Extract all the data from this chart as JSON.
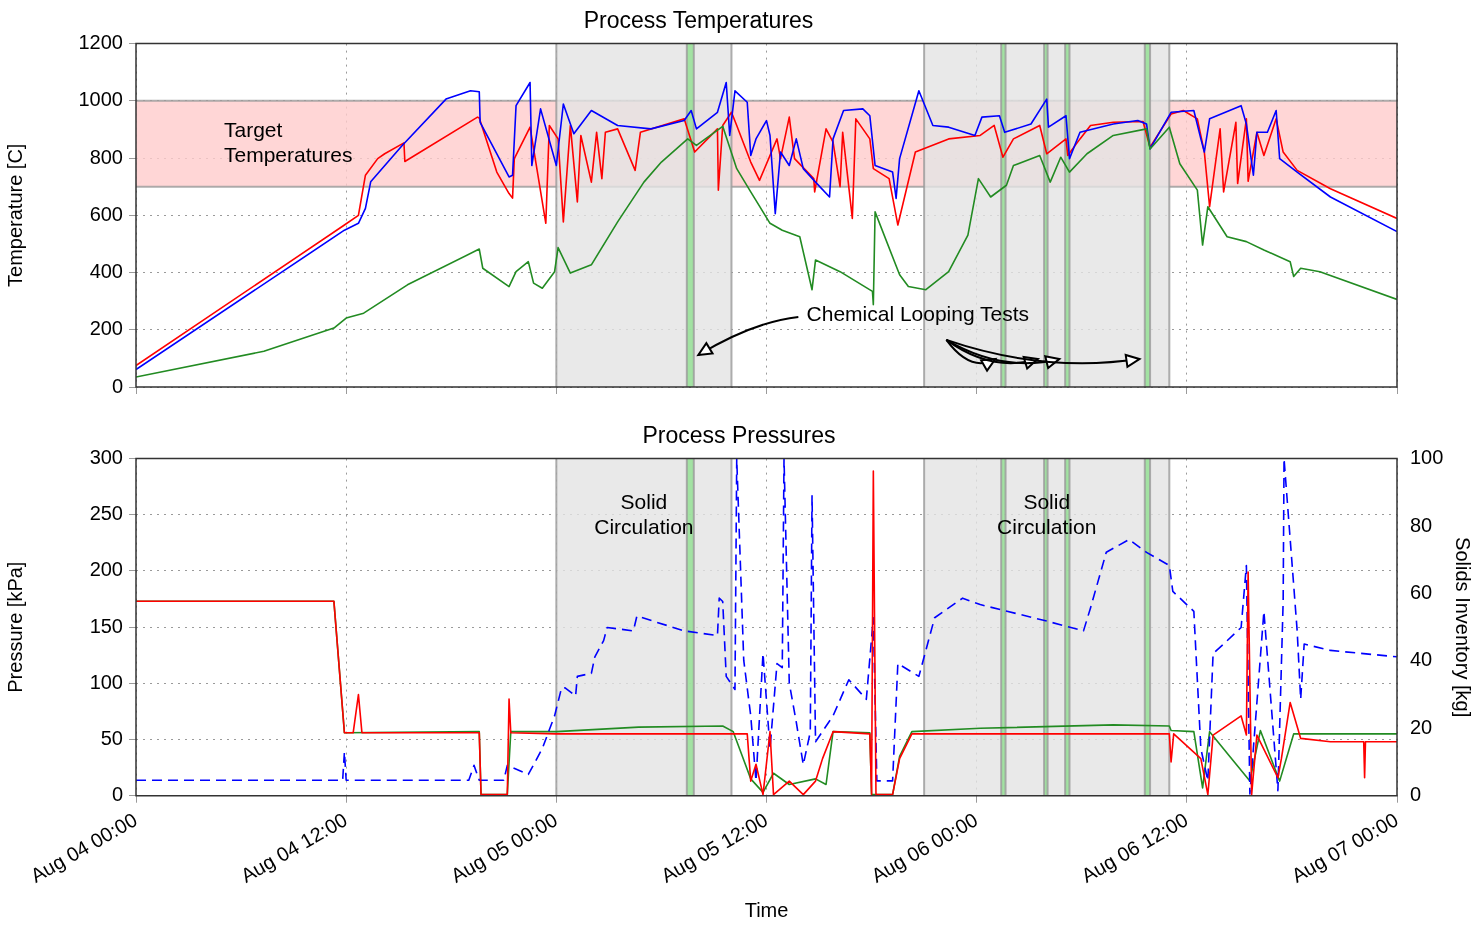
{
  "chart_data": [
    {
      "type": "line",
      "title": "Process Temperatures",
      "ylabel": "Temperature [C]",
      "xlim": [
        "--08-04T00:00",
        "--08-07T00:00"
      ],
      "xticks": [
        {
          "value": "--08-04T00:00",
          "label": null
        },
        {
          "value": "--08-04T12:00",
          "label": null
        },
        {
          "value": "--08-05T00:00",
          "label": null
        },
        {
          "value": "--08-05T12:00",
          "label": null
        },
        {
          "value": "--08-06T00:00",
          "label": null
        },
        {
          "value": "--08-06T12:00",
          "label": null
        },
        {
          "value": "--08-07T00:00",
          "label": null
        }
      ],
      "ylim": [
        0,
        1200
      ],
      "yticks": [
        0,
        200,
        400,
        600,
        800,
        1000,
        1200
      ],
      "tick_labels": "y",
      "grid": true,
      "legend": false,
      "marker": "none",
      "bands": [
        {
          "axis": "y",
          "from": 700,
          "to": 1000,
          "label": "Target Temperatures",
          "color": "#ffcccc"
        },
        {
          "axis": "x",
          "from": "--08-05T00:00",
          "to": "--08-05T10:00",
          "color": "#e3e3e3"
        },
        {
          "axis": "x",
          "from": "--08-05T21:00",
          "to": "--08-06T11:00",
          "color": "#e3e3e3"
        },
        {
          "axis": "x",
          "from": "--08-05T07:27",
          "to": "--08-05T07:51",
          "color": "#90e090"
        },
        {
          "axis": "x",
          "from": "--08-06T01:24",
          "to": "--08-06T01:39",
          "color": "#90e090"
        },
        {
          "axis": "x",
          "from": "--08-06T03:51",
          "to": "--08-06T04:03",
          "color": "#90e090"
        },
        {
          "axis": "x",
          "from": "--08-06T05:03",
          "to": "--08-06T05:18",
          "color": "#90e090"
        },
        {
          "axis": "x",
          "from": "--08-06T09:36",
          "to": "--08-06T09:54",
          "color": "#90e090"
        }
      ],
      "annotations": [
        "Chemical Looping Tests"
      ],
      "series": [
        {
          "color": "#ff0000",
          "x": [
            "--08-04T00:00",
            "--08-04T11:54",
            "--08-04T12:42",
            "--08-04T13:06",
            "--08-04T13:48",
            "--08-04T14:12",
            "--08-04T15:18",
            "--08-04T15:21",
            "--08-04T19:30",
            "--08-04T19:36",
            "--08-04T20:36",
            "--08-04T21:18",
            "--08-04T21:30",
            "--08-04T21:36",
            "--08-04T22:30",
            "--08-04T23:24",
            "--08-04T23:36",
            "--08-05T00:06",
            "--08-05T00:24",
            "--08-05T00:48",
            "--08-05T01:12",
            "--08-05T01:24",
            "--08-05T02:00",
            "--08-05T02:18",
            "--08-05T02:36",
            "--08-05T02:48",
            "--08-05T03:30",
            "--08-05T04:30",
            "--08-05T04:48",
            "--08-05T07:18",
            "--08-05T07:54",
            "--08-05T09:12",
            "--08-05T09:15",
            "--08-05T09:30",
            "--08-05T10:00",
            "--08-05T10:18",
            "--08-05T11:06",
            "--08-05T11:36",
            "--08-05T12:36",
            "--08-05T12:48",
            "--08-05T13:18",
            "--08-05T13:36",
            "--08-05T14:42",
            "--08-05T14:45",
            "--08-05T15:24",
            "--08-05T15:48",
            "--08-05T16:12",
            "--08-05T16:21",
            "--08-05T16:54",
            "--08-05T17:06",
            "--08-05T17:54",
            "--08-05T18:06",
            "--08-05T19:00",
            "--08-05T19:30",
            "--08-05T20:30",
            "--08-05T22:24",
            "--08-06T00:12",
            "--08-06T01:00",
            "--08-06T01:30",
            "--08-06T02:06",
            "--08-06T03:36",
            "--08-06T04:00",
            "--08-06T05:06",
            "--08-06T05:12",
            "--08-06T05:54",
            "--08-06T06:30",
            "--08-06T07:48",
            "--08-06T09:30",
            "--08-06T09:54",
            "--08-06T11:06",
            "--08-06T11:48",
            "--08-06T12:36",
            "--08-06T13:00",
            "--08-06T13:18",
            "--08-06T13:54",
            "--08-06T14:06",
            "--08-06T14:48",
            "--08-06T14:54",
            "--08-06T15:24",
            "--08-06T15:30",
            "--08-06T16:00",
            "--08-06T16:24",
            "--08-06T17:06",
            "--08-06T17:30",
            "--08-06T18:18",
            "--08-06T20:12",
            "--08-07T00:00"
          ],
          "values": [
            75,
            566,
            600,
            740,
            798,
            815,
            853,
            788,
            943,
            940,
            751,
            676,
            660,
            798,
            908,
            572,
            914,
            867,
            577,
            914,
            647,
            879,
            716,
            890,
            728,
            890,
            902,
            757,
            890,
            937,
            821,
            902,
            688,
            914,
            960,
            914,
            786,
            722,
            867,
            798,
            943,
            798,
            728,
            682,
            902,
            856,
            700,
            890,
            589,
            937,
            867,
            763,
            728,
            566,
            821,
            867,
            879,
            914,
            803,
            867,
            914,
            815,
            867,
            809,
            867,
            914,
            925,
            928,
            838,
            954,
            966,
            937,
            821,
            630,
            902,
            682,
            925,
            711,
            937,
            719,
            890,
            809,
            937,
            821,
            757,
            693,
            589
          ]
        },
        {
          "color": "#0000ff",
          "x": [
            "--08-04T00:00",
            "--08-04T11:54",
            "--08-04T12:42",
            "--08-04T13:06",
            "--08-04T13:24",
            "--08-04T15:12",
            "--08-04T17:42",
            "--08-04T19:06",
            "--08-04T19:36",
            "--08-04T19:39",
            "--08-04T21:18",
            "--08-04T21:30",
            "--08-04T21:42",
            "--08-04T22:30",
            "--08-04T22:36",
            "--08-04T23:06",
            "--08-05T00:00",
            "--08-05T00:24",
            "--08-05T01:00",
            "--08-05T02:00",
            "--08-05T03:30",
            "--08-05T05:24",
            "--08-05T07:18",
            "--08-05T07:42",
            "--08-05T08:00",
            "--08-05T09:12",
            "--08-05T09:42",
            "--08-05T09:54",
            "--08-05T10:12",
            "--08-05T10:54",
            "--08-05T11:06",
            "--08-05T11:24",
            "--08-05T12:00",
            "--08-05T12:12",
            "--08-05T12:30",
            "--08-05T12:48",
            "--08-05T13:18",
            "--08-05T13:42",
            "--08-05T14:06",
            "--08-05T14:48",
            "--08-05T15:36",
            "--08-05T15:48",
            "--08-05T16:24",
            "--08-05T17:30",
            "--08-05T17:54",
            "--08-05T18:12",
            "--08-05T19:12",
            "--08-05T19:24",
            "--08-05T19:36",
            "--08-05T20:42",
            "--08-05T21:30",
            "--08-05T22:24",
            "--08-05T23:54",
            "--08-06T00:18",
            "--08-06T01:18",
            "--08-06T01:36",
            "--08-06T03:06",
            "--08-06T04:00",
            "--08-06T04:06",
            "--08-06T05:06",
            "--08-06T05:18",
            "--08-06T05:54",
            "--08-06T07:48",
            "--08-06T09:12",
            "--08-06T09:42",
            "--08-06T09:54",
            "--08-06T11:06",
            "--08-06T12:24",
            "--08-06T12:48",
            "--08-06T13:00",
            "--08-06T13:18",
            "--08-06T15:06",
            "--08-06T15:24",
            "--08-06T15:48",
            "--08-06T16:00",
            "--08-06T16:36",
            "--08-06T17:06",
            "--08-06T17:18",
            "--08-06T18:18",
            "--08-06T20:12",
            "--08-07T00:00"
          ],
          "values": [
            61,
            548,
            572,
            624,
            717,
            844,
            1006,
            1035,
            1032,
            925,
            734,
            740,
            983,
            1064,
            774,
            972,
            774,
            989,
            885,
            966,
            914,
            902,
            931,
            966,
            902,
            960,
            1064,
            879,
            1035,
            995,
            809,
            867,
            931,
            879,
            606,
            821,
            774,
            867,
            763,
            716,
            664,
            867,
            966,
            972,
            948,
            774,
            751,
            659,
            798,
            1035,
            914,
            908,
            879,
            943,
            948,
            890,
            919,
            1006,
            908,
            948,
            798,
            890,
            919,
            931,
            919,
            832,
            960,
            966,
            867,
            821,
            937,
            983,
            919,
            740,
            890,
            890,
            966,
            798,
            751,
            664,
            543
          ]
        },
        {
          "color": "#228b22",
          "x": [
            "--08-04T00:00",
            "--08-04T07:18",
            "--08-04T11:18",
            "--08-04T12:00",
            "--08-04T13:00",
            "--08-04T15:30",
            "--08-04T19:36",
            "--08-04T19:48",
            "--08-04T21:18",
            "--08-04T21:42",
            "--08-04T22:24",
            "--08-04T22:42",
            "--08-04T23:12",
            "--08-04T23:54",
            "--08-05T00:06",
            "--08-05T00:48",
            "--08-05T02:00",
            "--08-05T03:30",
            "--08-05T05:00",
            "--08-05T06:00",
            "--08-05T07:30",
            "--08-05T08:00",
            "--08-05T09:30",
            "--08-05T10:18",
            "--08-05T11:06",
            "--08-05T12:12",
            "--08-05T12:54",
            "--08-05T13:54",
            "--08-05T14:36",
            "--08-05T14:48",
            "--08-05T16:12",
            "--08-05T18:03",
            "--08-05T18:06",
            "--08-05T18:12",
            "--08-05T19:36",
            "--08-05T20:06",
            "--08-05T21:06",
            "--08-05T22:24",
            "--08-05T23:30",
            "--08-06T00:06",
            "--08-06T00:48",
            "--08-06T01:42",
            "--08-06T02:06",
            "--08-06T03:36",
            "--08-06T04:12",
            "--08-06T04:48",
            "--08-06T05:18",
            "--08-06T06:18",
            "--08-06T07:48",
            "--08-06T09:42",
            "--08-06T09:54",
            "--08-06T11:00",
            "--08-06T11:36",
            "--08-06T12:36",
            "--08-06T12:54",
            "--08-06T13:12",
            "--08-06T14:18",
            "--08-06T15:24",
            "--08-06T16:24",
            "--08-06T17:54",
            "--08-06T18:06",
            "--08-06T18:30",
            "--08-06T19:36",
            "--08-07T00:00"
          ],
          "values": [
            35,
            125,
            206,
            241,
            258,
            357,
            482,
            415,
            351,
            403,
            438,
            363,
            345,
            403,
            487,
            398,
            427,
            577,
            716,
            786,
            867,
            844,
            911,
            763,
            682,
            572,
            548,
            525,
            340,
            444,
            403,
            334,
            288,
            612,
            392,
            351,
            340,
            403,
            531,
            728,
            664,
            705,
            774,
            809,
            716,
            803,
            751,
            815,
            879,
            902,
            832,
            908,
            780,
            688,
            496,
            630,
            525,
            508,
            479,
            438,
            386,
            415,
            403,
            306
          ]
        }
      ]
    },
    {
      "type": "line",
      "title": "Process Pressures",
      "xlabel": "Time",
      "ylabel": "Pressure [kPa]",
      "y2label": "Solids Inventory [kg]",
      "xlim": [
        "--08-04T00:00",
        "--08-07T00:00"
      ],
      "xticks": [
        {
          "value": "--08-04T00:00",
          "label": "Aug 04 00:00"
        },
        {
          "value": "--08-04T12:00",
          "label": "Aug 04 12:00"
        },
        {
          "value": "--08-05T00:00",
          "label": "Aug 05 00:00"
        },
        {
          "value": "--08-05T12:00",
          "label": "Aug 05 12:00"
        },
        {
          "value": "--08-06T00:00",
          "label": "Aug 06 00:00"
        },
        {
          "value": "--08-06T12:00",
          "label": "Aug 06 12:00"
        },
        {
          "value": "--08-07T00:00",
          "label": "Aug 07 00:00"
        }
      ],
      "ylim": [
        0,
        300
      ],
      "yticks": [
        0,
        50,
        100,
        150,
        200,
        250,
        300
      ],
      "y2lim": [
        0,
        100
      ],
      "y2ticks": [
        0,
        20,
        40,
        60,
        80,
        100
      ],
      "grid": true,
      "legend": false,
      "marker": "none",
      "bands": [
        {
          "axis": "x",
          "from": "--08-05T00:00",
          "to": "--08-05T10:00",
          "label": "Solid Circulation",
          "color": "#e3e3e3"
        },
        {
          "axis": "x",
          "from": "--08-05T21:00",
          "to": "--08-06T11:00",
          "label": "Solid Circulation",
          "color": "#e3e3e3"
        },
        {
          "axis": "x",
          "from": "--08-05T07:27",
          "to": "--08-05T07:51",
          "color": "#90e090"
        },
        {
          "axis": "x",
          "from": "--08-06T01:24",
          "to": "--08-06T01:39",
          "color": "#90e090"
        },
        {
          "axis": "x",
          "from": "--08-06T03:51",
          "to": "--08-06T04:03",
          "color": "#90e090"
        },
        {
          "axis": "x",
          "from": "--08-06T05:03",
          "to": "--08-06T05:18",
          "color": "#90e090"
        },
        {
          "axis": "x",
          "from": "--08-06T09:36",
          "to": "--08-06T09:54",
          "color": "#90e090"
        }
      ],
      "series": [
        {
          "color": "#228b22",
          "x": [
            "--08-04T00:00",
            "--08-04T11:18",
            "--08-04T11:54",
            "--08-04T19:36",
            "--08-04T19:42",
            "--08-04T21:12",
            "--08-04T21:24",
            "--08-05T00:00",
            "--08-05T04:42",
            "--08-05T09:30",
            "--08-05T10:06",
            "--08-05T11:06",
            "--08-05T11:48",
            "--08-05T12:24",
            "--08-05T13:18",
            "--08-05T14:48",
            "--08-05T15:24",
            "--08-05T15:48",
            "--08-05T17:54",
            "--08-05T18:00",
            "--08-05T19:12",
            "--08-05T19:36",
            "--08-05T20:18",
            "--08-06T00:12",
            "--08-06T07:48",
            "--08-06T11:00",
            "--08-06T11:06",
            "--08-06T12:24",
            "--08-06T12:54",
            "--08-06T13:18",
            "--08-06T15:36",
            "--08-06T16:12",
            "--08-06T17:18",
            "--08-06T18:06",
            "--08-06T20:12",
            "--08-07T00:00"
          ],
          "values": [
            173,
            173,
            56,
            57,
            1,
            1,
            57,
            57,
            61,
            62,
            57,
            15,
            3,
            20,
            10,
            15,
            10,
            57,
            56,
            1,
            1,
            35,
            57,
            60,
            63,
            62,
            58,
            57,
            7,
            57,
            13,
            58,
            13,
            55,
            55,
            55
          ]
        },
        {
          "color": "#0000ff",
          "axis": "y2",
          "line_style": "dashed",
          "x": [
            "--08-04T00:00",
            "--08-04T11:48",
            "--08-04T11:54",
            "--08-04T12:00",
            "--08-04T19:00",
            "--08-04T19:18",
            "--08-04T19:36",
            "--08-04T21:00",
            "--08-04T21:12",
            "--08-04T22:24",
            "--08-04T23:12",
            "--08-04T23:54",
            "--08-05T00:18",
            "--08-05T00:30",
            "--08-05T01:06",
            "--08-05T01:12",
            "--08-05T02:00",
            "--08-05T02:12",
            "--08-05T02:42",
            "--08-05T02:54",
            "--08-05T04:24",
            "--08-05T04:36",
            "--08-05T07:18",
            "--08-05T09:12",
            "--08-05T09:18",
            "--08-05T09:30",
            "--08-05T09:42",
            "--08-05T10:12",
            "--08-05T10:18",
            "--08-05T10:42",
            "--08-05T11:06",
            "--08-05T11:24",
            "--08-05T11:48",
            "--08-05T12:12",
            "--08-05T12:36",
            "--08-05T12:54",
            "--08-05T13:00",
            "--08-05T13:18",
            "--08-05T13:42",
            "--08-05T14:06",
            "--08-05T14:30",
            "--08-05T14:36",
            "--08-05T14:48",
            "--08-05T15:48",
            "--08-05T16:42",
            "--08-05T17:42",
            "--08-05T18:06",
            "--08-05T18:18",
            "--08-05T19:12",
            "--08-05T19:30",
            "--08-05T20:42",
            "--08-05T21:36",
            "--08-05T23:12",
            "--08-06T00:12",
            "--08-06T04:00",
            "--08-06T06:06",
            "--08-06T06:30",
            "--08-06T07:24",
            "--08-06T08:42",
            "--08-06T09:42",
            "--08-06T11:00",
            "--08-06T11:12",
            "--08-06T12:24",
            "--08-06T12:48",
            "--08-06T13:12",
            "--08-06T13:30",
            "--08-06T14:06",
            "--08-06T15:06",
            "--08-06T15:24",
            "--08-06T15:36",
            "--08-06T16:24",
            "--08-06T17:12",
            "--08-06T17:30",
            "--08-06T17:33",
            "--08-06T18:18",
            "--08-06T18:30",
            "--08-06T18:42",
            "--08-06T20:12",
            "--08-07T00:00"
          ],
          "values": [
            4.6,
            4.6,
            13,
            4.6,
            4.6,
            9,
            4.6,
            4.6,
            9,
            6.3,
            14,
            23.7,
            32,
            32,
            29.6,
            35.4,
            36.3,
            41.2,
            46,
            49.9,
            48.9,
            53.3,
            48.9,
            47.5,
            58.6,
            57.6,
            35.4,
            31.5,
            100,
            40.2,
            23.7,
            4.4,
            42.2,
            14,
            39.2,
            38,
            100,
            33.4,
            21.8,
            9.2,
            18.9,
            89,
            16,
            23.7,
            34.4,
            28.6,
            52.8,
            4.4,
            4.4,
            39.2,
            35.4,
            52.8,
            58.6,
            56.7,
            51.8,
            48.9,
            55.7,
            72.2,
            76,
            72.2,
            68.3,
            60.6,
            54.7,
            14,
            4.4,
            42.2,
            45,
            49.9,
            68.3,
            0.5,
            54.7,
            1.5,
            57.7,
            100,
            48.9,
            28.6,
            45,
            43.1,
            41.2
          ]
        },
        {
          "color": "#ff0000",
          "x": [
            "--08-04T00:00",
            "--08-04T11:18",
            "--08-04T11:54",
            "--08-04T12:24",
            "--08-04T12:42",
            "--08-04T12:54",
            "--08-04T19:36",
            "--08-04T19:42",
            "--08-04T21:12",
            "--08-04T21:18",
            "--08-04T21:24",
            "--08-05T00:00",
            "--08-05T10:54",
            "--08-05T11:06",
            "--08-05T11:24",
            "--08-05T11:48",
            "--08-05T12:12",
            "--08-05T12:24",
            "--08-05T13:18",
            "--08-05T14:06",
            "--08-05T14:48",
            "--08-05T15:12",
            "--08-05T15:48",
            "--08-05T17:54",
            "--08-05T18:00",
            "--08-05T18:06",
            "--08-05T18:15",
            "--08-05T19:12",
            "--08-05T19:36",
            "--08-05T20:18",
            "--08-06T11:00",
            "--08-06T11:06",
            "--08-06T11:15",
            "--08-06T12:48",
            "--08-06T13:12",
            "--08-06T13:30",
            "--08-06T15:06",
            "--08-06T15:24",
            "--08-06T15:30",
            "--08-06T15:42",
            "--08-06T16:00",
            "--08-06T17:12",
            "--08-06T17:24",
            "--08-06T17:54",
            "--08-06T18:30",
            "--08-06T20:12",
            "--08-06T22:06",
            "--08-06T22:09",
            "--08-06T22:12",
            "--08-07T00:00"
          ],
          "values": [
            173,
            173,
            56,
            56,
            90,
            56,
            56,
            1,
            1,
            86,
            56,
            55,
            55,
            13,
            28,
            1,
            57,
            1,
            13,
            1,
            13,
            33,
            57,
            55,
            1,
            289,
            1,
            1,
            33,
            55,
            55,
            30,
            55,
            33,
            1,
            54,
            71,
            54,
            199,
            1,
            54,
            16,
            33,
            83,
            51,
            48,
            48,
            16,
            48,
            48
          ]
        }
      ]
    }
  ]
}
